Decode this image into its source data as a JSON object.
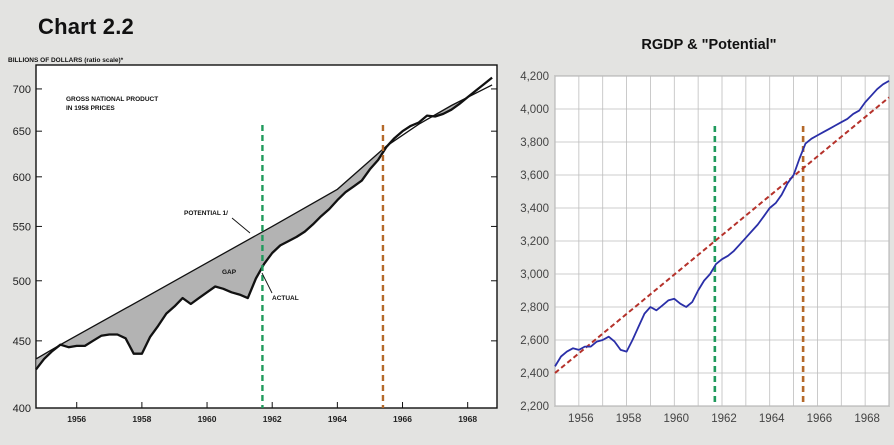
{
  "page": {
    "main_title": "Chart 2.2"
  },
  "chart_data": [
    {
      "type": "line",
      "title": "",
      "ylabel": "BILLIONS OF DOLLARS (ratio scale)*",
      "inner_title": [
        "GROSS NATIONAL PRODUCT",
        "IN 1958 PRICES"
      ],
      "y_scale": "log",
      "ylim": [
        400,
        730
      ],
      "xlim": [
        1954.75,
        1968.9
      ],
      "y_ticks": [
        400,
        450,
        500,
        550,
        600,
        650,
        700
      ],
      "x_ticks": [
        "1956",
        "1958",
        "1960",
        "1962",
        "1964",
        "1966",
        "1968"
      ],
      "grid": false,
      "series": [
        {
          "name": "POTENTIAL 1/",
          "x": [
            1954.75,
            1955.5,
            1958,
            1960,
            1962,
            1964,
            1965.5,
            1966.5,
            1967.5,
            1968.75
          ],
          "values": [
            436,
            447,
            484,
            516,
            550,
            587,
            633,
            658,
            680,
            705
          ]
        },
        {
          "name": "ACTUAL",
          "x": [
            1954.75,
            1955.0,
            1955.25,
            1955.5,
            1955.75,
            1956.0,
            1956.25,
            1956.5,
            1956.75,
            1957.0,
            1957.25,
            1957.5,
            1957.75,
            1958.0,
            1958.25,
            1958.5,
            1958.75,
            1959.0,
            1959.25,
            1959.5,
            1959.75,
            1960.0,
            1960.25,
            1960.5,
            1960.75,
            1961.0,
            1961.25,
            1961.5,
            1961.75,
            1962.0,
            1962.25,
            1962.5,
            1962.75,
            1963.0,
            1963.25,
            1963.5,
            1963.75,
            1964.0,
            1964.25,
            1964.5,
            1964.75,
            1965.0,
            1965.25,
            1965.5,
            1965.75,
            1966.0,
            1966.25,
            1966.5,
            1966.75,
            1967.0,
            1967.25,
            1967.5,
            1967.75,
            1968.0,
            1968.25,
            1968.5,
            1968.75
          ],
          "values": [
            428,
            436,
            442,
            447,
            445,
            446,
            446,
            450,
            454,
            455,
            455,
            452,
            440,
            440,
            453,
            462,
            472,
            478,
            485,
            480,
            485,
            490,
            495,
            493,
            490,
            488,
            485,
            502,
            515,
            525,
            532,
            536,
            540,
            545,
            552,
            560,
            567,
            576,
            584,
            590,
            596,
            608,
            618,
            632,
            642,
            650,
            656,
            660,
            668,
            667,
            670,
            675,
            682,
            690,
            698,
            706,
            714
          ]
        }
      ],
      "annotations": [
        "POTENTIAL 1/",
        "GAP",
        "ACTUAL"
      ],
      "vertical_lines": [
        {
          "x": 1961.7,
          "color": "#1f9a5c"
        },
        {
          "x": 1965.4,
          "color": "#b4692a"
        }
      ]
    },
    {
      "type": "line",
      "title": "RGDP & \"Potential\"",
      "xlabel": "",
      "ylabel": "",
      "ylim": [
        2200,
        4200
      ],
      "xlim": [
        1955,
        1969
      ],
      "y_ticks": [
        "2,200",
        "2,400",
        "2,600",
        "2,800",
        "3,000",
        "3,200",
        "3,400",
        "3,600",
        "3,800",
        "4,000",
        "4,200"
      ],
      "y_tick_values": [
        2200,
        2400,
        2600,
        2800,
        3000,
        3200,
        3400,
        3600,
        3800,
        4000,
        4200
      ],
      "x_ticks": [
        "1956",
        "1958",
        "1960",
        "1962",
        "1964",
        "1966",
        "1968"
      ],
      "x_tick_values": [
        1956,
        1958,
        1960,
        1962,
        1964,
        1966,
        1968
      ],
      "grid": true,
      "series": [
        {
          "name": "RGDP",
          "color": "#2a2fa8",
          "x": [
            1955.0,
            1955.25,
            1955.5,
            1955.75,
            1956.0,
            1956.25,
            1956.5,
            1956.75,
            1957.0,
            1957.25,
            1957.5,
            1957.75,
            1958.0,
            1958.25,
            1958.5,
            1958.75,
            1959.0,
            1959.25,
            1959.5,
            1959.75,
            1960.0,
            1960.25,
            1960.5,
            1960.75,
            1961.0,
            1961.25,
            1961.5,
            1961.75,
            1962.0,
            1962.25,
            1962.5,
            1962.75,
            1963.0,
            1963.25,
            1963.5,
            1963.75,
            1964.0,
            1964.25,
            1964.5,
            1964.75,
            1965.0,
            1965.25,
            1965.5,
            1965.75,
            1966.0,
            1966.25,
            1966.5,
            1966.75,
            1967.0,
            1967.25,
            1967.5,
            1967.75,
            1968.0,
            1968.25,
            1968.5,
            1968.75,
            1969.0
          ],
          "values": [
            2440,
            2500,
            2530,
            2550,
            2540,
            2560,
            2560,
            2590,
            2600,
            2620,
            2590,
            2540,
            2530,
            2600,
            2680,
            2760,
            2800,
            2780,
            2810,
            2840,
            2850,
            2820,
            2800,
            2830,
            2900,
            2960,
            3000,
            3060,
            3090,
            3110,
            3140,
            3180,
            3220,
            3260,
            3300,
            3350,
            3400,
            3430,
            3480,
            3550,
            3600,
            3700,
            3790,
            3820,
            3840,
            3860,
            3880,
            3900,
            3920,
            3940,
            3970,
            3990,
            4040,
            4080,
            4120,
            4150,
            4170
          ]
        },
        {
          "name": "Potential",
          "color": "#b5322b",
          "style": "dashed",
          "x": [
            1955.0,
            1969.0
          ],
          "values": [
            2400,
            4070
          ]
        }
      ],
      "vertical_lines": [
        {
          "x": 1961.7,
          "color": "#1f9a5c"
        },
        {
          "x": 1965.4,
          "color": "#b4692a"
        }
      ]
    }
  ]
}
